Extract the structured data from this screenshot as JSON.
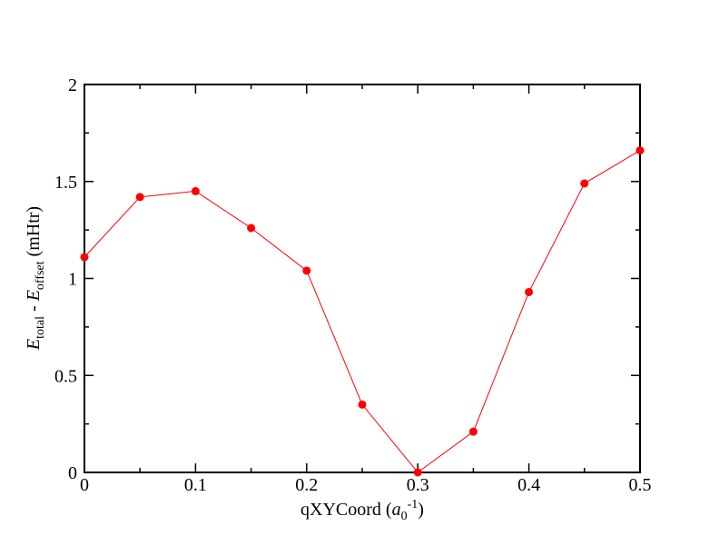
{
  "chart_data": {
    "type": "line",
    "title": "",
    "xlabel": "qXYCoord (a0^-1)",
    "ylabel": "E_total - E_offset (mHtr)",
    "x": [
      0,
      0.05,
      0.1,
      0.15,
      0.2,
      0.25,
      0.3,
      0.35,
      0.4,
      0.45,
      0.5
    ],
    "y": [
      1.11,
      1.42,
      1.45,
      1.26,
      1.04,
      0.35,
      0.0,
      0.21,
      0.93,
      1.49,
      1.66
    ],
    "xlim": [
      0,
      0.5
    ],
    "ylim": [
      0,
      2
    ],
    "x_major_ticks": [
      0,
      0.1,
      0.2,
      0.3,
      0.4,
      0.5
    ],
    "x_tick_labels": [
      "0",
      "0.1",
      "0.2",
      "0.3",
      "0.4",
      "0.5"
    ],
    "x_minor_ticks": [
      0.05,
      0.15,
      0.25,
      0.35,
      0.45
    ],
    "y_major_ticks": [
      0,
      0.5,
      1,
      1.5,
      2
    ],
    "y_tick_labels": [
      "0",
      "0.5",
      "1",
      "1.5",
      "2"
    ],
    "y_minor_ticks": [
      0.25,
      0.75,
      1.25,
      1.75
    ],
    "grid": false,
    "legend": "none",
    "marker": "filled-circle",
    "series_color": "#ff0000",
    "frame_color": "#000000",
    "background_color": "#ffffff",
    "tick_style": "inward-all-sides"
  },
  "xlabel_parts": {
    "prefix": "qXYCoord (",
    "var": "a",
    "sub": "0",
    "sup": "-1",
    "suffix": ")"
  },
  "ylabel_parts": {
    "var1": "E",
    "sub1": "total",
    "minus": " - ",
    "var2": "E",
    "sub2": "offset",
    "suffix": " (mHtr)"
  }
}
